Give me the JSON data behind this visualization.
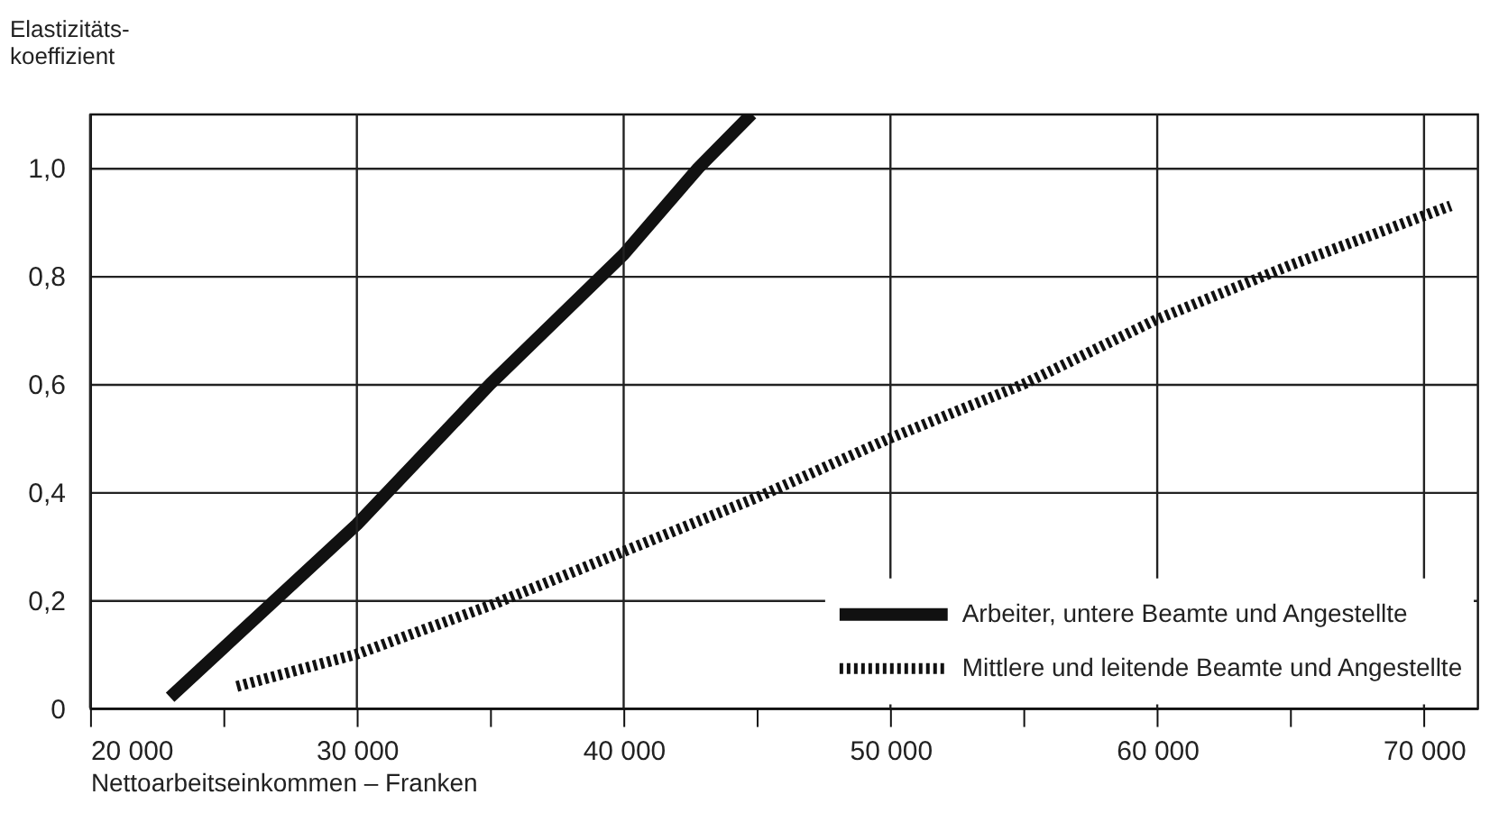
{
  "chart_data": {
    "type": "line",
    "ylabel": "Elastizitäts-\nkoeffizient",
    "xlabel": "Nettoarbeitseinkommen – Franken",
    "series": [
      {
        "name": "Arbeiter, untere Beamte und Angestellte",
        "color": "#111111",
        "line_style": "solid",
        "x": [
          23000,
          30000,
          35000,
          40000,
          42800,
          44800
        ],
        "values": [
          0.02,
          0.34,
          0.6,
          0.84,
          1.0,
          1.1
        ]
      },
      {
        "name": "Mittlere und leitende Beamte und Angestellte",
        "color": "#111111",
        "line_style": "dotted",
        "x": [
          25500,
          30000,
          35000,
          40000,
          45000,
          50000,
          55000,
          60000,
          65000,
          71000
        ],
        "values": [
          0.04,
          0.1,
          0.19,
          0.29,
          0.39,
          0.5,
          0.6,
          0.72,
          0.82,
          0.93
        ]
      }
    ],
    "xlim": [
      20000,
      72000
    ],
    "ylim": [
      0,
      1.1
    ],
    "xticks": [
      {
        "value": 20000,
        "label": "20 000"
      },
      {
        "value": 25000,
        "label": null
      },
      {
        "value": 30000,
        "label": "30 000"
      },
      {
        "value": 35000,
        "label": null
      },
      {
        "value": 40000,
        "label": "40 000"
      },
      {
        "value": 45000,
        "label": null
      },
      {
        "value": 50000,
        "label": "50 000"
      },
      {
        "value": 55000,
        "label": null
      },
      {
        "value": 60000,
        "label": "60 000"
      },
      {
        "value": 65000,
        "label": null
      },
      {
        "value": 70000,
        "label": "70 000"
      }
    ],
    "yticks": [
      0,
      {
        "value": 0.2,
        "label": "0,2"
      },
      {
        "value": 0.4,
        "label": "0,4"
      },
      {
        "value": 0.6,
        "label": "0,6"
      },
      {
        "value": 0.8,
        "label": "0,8"
      },
      {
        "value": 1.0,
        "label": "1,0"
      }
    ],
    "grid": true,
    "legend": "bottom right"
  }
}
